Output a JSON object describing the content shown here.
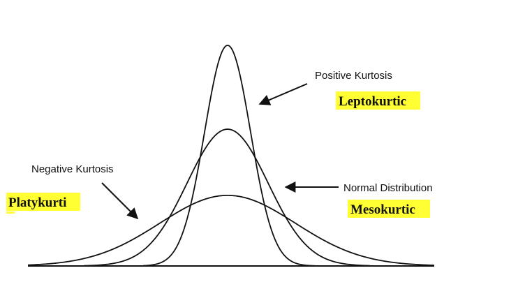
{
  "diagram": {
    "title_labels": {
      "positive": "Positive Kurtosis",
      "leptokurtic": "Leptokurtic",
      "normal": "Normal Distribution",
      "mesokurtic": "Mesokurtic",
      "negative": "Negative Kurtosis",
      "platykurtic": "Platykurti"
    },
    "curves": [
      {
        "name": "leptokurtic",
        "relative_peak": 1.0
      },
      {
        "name": "mesokurtic",
        "relative_peak": 0.62
      },
      {
        "name": "platykurtic",
        "relative_peak": 0.32
      }
    ],
    "colors": {
      "highlight": "#ffff33",
      "line": "#111111",
      "background": "#ffffff"
    }
  }
}
